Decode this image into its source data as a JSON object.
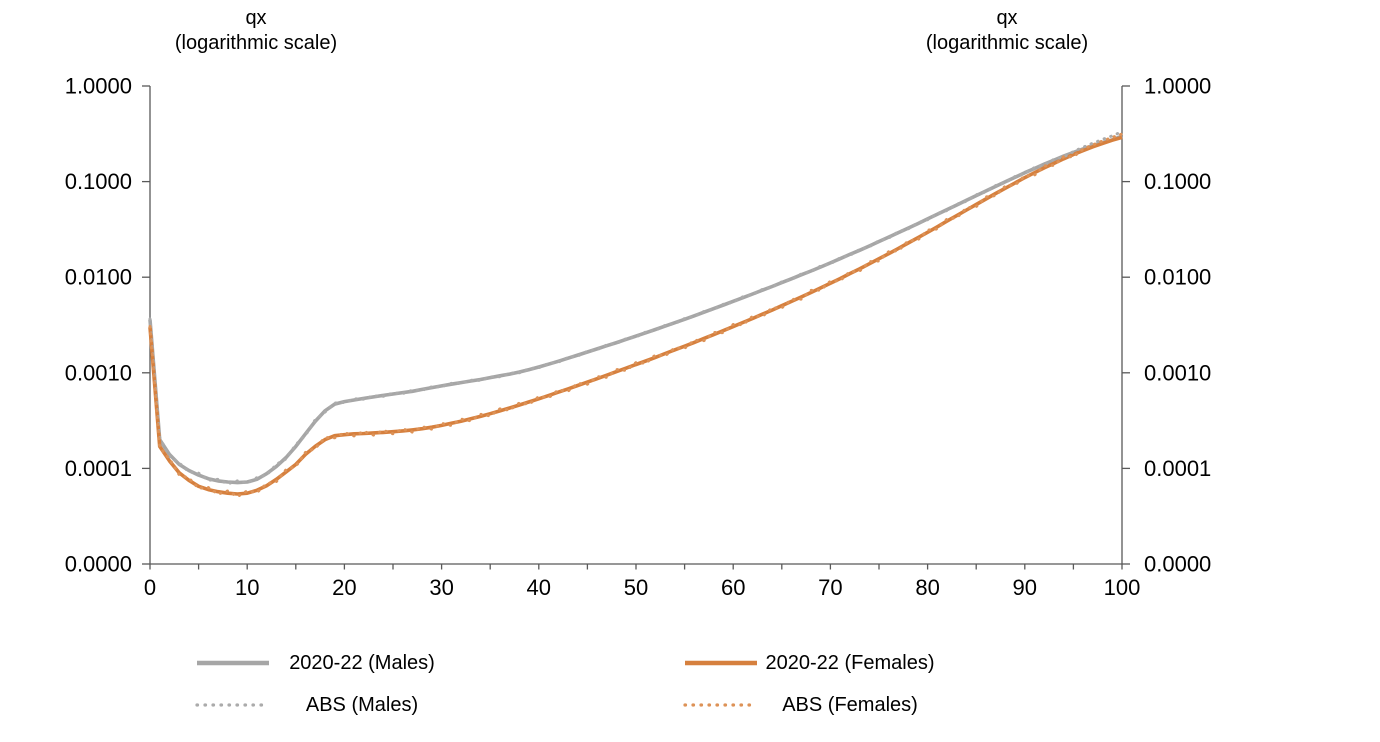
{
  "chart_data": {
    "type": "line",
    "left_axis_title": {
      "line1": "qx",
      "line2": "(logarithmic scale)"
    },
    "right_axis_title": {
      "line1": "qx",
      "line2": "(logarithmic scale)"
    },
    "x_axis": {
      "min": 0,
      "max": 100,
      "major_tick_labels": [
        "0",
        "10",
        "20",
        "30",
        "40",
        "50",
        "60",
        "70",
        "80",
        "90",
        "100"
      ],
      "major_tick_values": [
        0,
        10,
        20,
        30,
        40,
        50,
        60,
        70,
        80,
        90,
        100
      ],
      "minor_tick_step": 5
    },
    "y_axis": {
      "scale": "logarithmic",
      "min": 1e-05,
      "max": 1.0,
      "tick_labels": [
        "1.0000",
        "0.1000",
        "0.0100",
        "0.0010",
        "0.0001",
        "0.0000"
      ],
      "tick_values": [
        1,
        0.1,
        0.01,
        0.001,
        0.0001,
        1e-05
      ],
      "sides": [
        "left",
        "right"
      ],
      "grid": false
    },
    "x": [
      0,
      1,
      2,
      3,
      4,
      5,
      6,
      7,
      8,
      9,
      10,
      11,
      12,
      13,
      14,
      15,
      16,
      17,
      18,
      19,
      20,
      21,
      22,
      23,
      24,
      25,
      26,
      27,
      28,
      29,
      30,
      31,
      32,
      33,
      34,
      35,
      36,
      37,
      38,
      39,
      40,
      41,
      42,
      43,
      44,
      45,
      46,
      47,
      48,
      49,
      50,
      51,
      52,
      53,
      54,
      55,
      56,
      57,
      58,
      59,
      60,
      61,
      62,
      63,
      64,
      65,
      66,
      67,
      68,
      69,
      70,
      71,
      72,
      73,
      74,
      75,
      76,
      77,
      78,
      79,
      80,
      81,
      82,
      83,
      84,
      85,
      86,
      87,
      88,
      89,
      90,
      91,
      92,
      93,
      94,
      95,
      96,
      97,
      98,
      99,
      100
    ],
    "series": [
      {
        "name": "2020-22 (Males)",
        "line_style": "solid",
        "color": "#A6A6A6",
        "values": [
          0.0036,
          0.0002,
          0.00014,
          0.00011,
          9.5e-05,
          8.5e-05,
          7.8e-05,
          7.4e-05,
          7.2e-05,
          7.1e-05,
          7.2e-05,
          7.7e-05,
          8.8e-05,
          0.000105,
          0.00013,
          0.00017,
          0.00023,
          0.00031,
          0.0004,
          0.00047,
          0.0005,
          0.00052,
          0.00054,
          0.00056,
          0.00058,
          0.0006,
          0.00062,
          0.00064,
          0.00067,
          0.0007,
          0.00073,
          0.00076,
          0.00079,
          0.00082,
          0.00085,
          0.00089,
          0.00093,
          0.00097,
          0.00102,
          0.00108,
          0.00115,
          0.00123,
          0.00132,
          0.00142,
          0.00153,
          0.00165,
          0.00178,
          0.00192,
          0.00207,
          0.00224,
          0.00242,
          0.00262,
          0.00284,
          0.00308,
          0.00334,
          0.00363,
          0.00395,
          0.0043,
          0.00469,
          0.00512,
          0.00559,
          0.00611,
          0.00668,
          0.00731,
          0.008,
          0.00877,
          0.00962,
          0.0106,
          0.0116,
          0.0128,
          0.0141,
          0.0156,
          0.0173,
          0.0191,
          0.0212,
          0.0236,
          0.0263,
          0.0293,
          0.0326,
          0.0364,
          0.0407,
          0.0455,
          0.0509,
          0.0569,
          0.0637,
          0.0713,
          0.0797,
          0.0891,
          0.0995,
          0.111,
          0.124,
          0.137,
          0.152,
          0.168,
          0.185,
          0.202,
          0.22,
          0.238,
          0.256,
          0.274,
          0.3
        ]
      },
      {
        "name": "2020-22 (Females)",
        "line_style": "solid",
        "color": "#D6803E",
        "values": [
          0.003,
          0.00017,
          0.00012,
          9e-05,
          7.5e-05,
          6.5e-05,
          6e-05,
          5.7e-05,
          5.5e-05,
          5.4e-05,
          5.5e-05,
          5.9e-05,
          6.6e-05,
          7.7e-05,
          9.2e-05,
          0.00011,
          0.00014,
          0.00017,
          0.0002,
          0.00022,
          0.000225,
          0.00023,
          0.000232,
          0.000235,
          0.000238,
          0.000242,
          0.000247,
          0.000253,
          0.00026,
          0.00027,
          0.000282,
          0.000296,
          0.000312,
          0.00033,
          0.00035,
          0.000373,
          0.000399,
          0.000428,
          0.00046,
          0.000496,
          0.000535,
          0.000578,
          0.000626,
          0.000678,
          0.000736,
          0.000799,
          0.000868,
          0.000944,
          0.00103,
          0.00112,
          0.00122,
          0.00133,
          0.00145,
          0.00159,
          0.00174,
          0.0019,
          0.00208,
          0.00229,
          0.00251,
          0.00276,
          0.00304,
          0.00336,
          0.0037,
          0.0041,
          0.00453,
          0.00503,
          0.00558,
          0.00621,
          0.00692,
          0.00772,
          0.00864,
          0.00968,
          0.0109,
          0.0122,
          0.0138,
          0.0156,
          0.0176,
          0.02,
          0.0228,
          0.0259,
          0.0295,
          0.0337,
          0.0386,
          0.0441,
          0.0504,
          0.0576,
          0.0658,
          0.075,
          0.0853,
          0.0969,
          0.11,
          0.124,
          0.139,
          0.155,
          0.173,
          0.192,
          0.211,
          0.231,
          0.251,
          0.271,
          0.29
        ]
      },
      {
        "name": "ABS (Males)",
        "line_style": "dotted",
        "color": "#ABABAB",
        "values": [
          0.00365,
          0.00021,
          0.000133,
          0.000114,
          9.2e-05,
          8.9e-05,
          7.5e-05,
          7.7e-05,
          6.9e-05,
          7.4e-05,
          7e-05,
          8e-05,
          8.5e-05,
          0.00011,
          0.000126,
          0.000177,
          0.000222,
          0.000322,
          0.000388,
          0.000482,
          0.00049,
          0.000535,
          0.000529,
          0.000574,
          0.000568,
          0.000615,
          0.000607,
          0.000656,
          0.000657,
          0.000714,
          0.000716,
          0.000775,
          0.000774,
          0.000836,
          0.000833,
          0.000907,
          0.000911,
          0.000989,
          0.001,
          0.0011,
          0.00113,
          0.00125,
          0.00129,
          0.00145,
          0.0015,
          0.00168,
          0.00175,
          0.00196,
          0.00203,
          0.00228,
          0.00237,
          0.00267,
          0.00278,
          0.00314,
          0.00327,
          0.0037,
          0.00387,
          0.00439,
          0.0046,
          0.00522,
          0.00548,
          0.00623,
          0.00655,
          0.00746,
          0.00784,
          0.00895,
          0.00943,
          0.0108,
          0.0114,
          0.0131,
          0.0138,
          0.0159,
          0.0169,
          0.0195,
          0.0208,
          0.0241,
          0.0257,
          0.0299,
          0.032,
          0.0371,
          0.0399,
          0.0464,
          0.0498,
          0.058,
          0.0624,
          0.0727,
          0.0781,
          0.0909,
          0.0975,
          0.113,
          0.121,
          0.14,
          0.149,
          0.171,
          0.181,
          0.206,
          0.229,
          0.252,
          0.276,
          0.301,
          0.333
        ]
      },
      {
        "name": "ABS (Females)",
        "line_style": "dotted",
        "color": "#DD9257",
        "values": [
          0.00305,
          0.000165,
          0.000126,
          8.6e-05,
          7.9e-05,
          6.2e-05,
          6.3e-05,
          5.4e-05,
          5.8e-05,
          5.1e-05,
          5.8e-05,
          5.6e-05,
          6.9e-05,
          7.3e-05,
          9.7e-05,
          0.000105,
          0.000147,
          0.000162,
          0.00021,
          0.000209,
          0.000236,
          0.000219,
          0.000244,
          0.000223,
          0.00025,
          0.00023,
          0.000259,
          0.00024,
          0.000273,
          0.000257,
          0.000296,
          0.000281,
          0.000328,
          0.000314,
          0.000368,
          0.000354,
          0.000419,
          0.000407,
          0.000483,
          0.000471,
          0.000562,
          0.000549,
          0.000657,
          0.000644,
          0.000773,
          0.000759,
          0.000911,
          0.000897,
          0.00108,
          0.00106,
          0.00128,
          0.00126,
          0.00153,
          0.00151,
          0.00182,
          0.00181,
          0.00219,
          0.00217,
          0.00264,
          0.00263,
          0.0032,
          0.00319,
          0.00389,
          0.00389,
          0.00476,
          0.00478,
          0.00586,
          0.0059,
          0.00727,
          0.00734,
          0.00907,
          0.0092,
          0.0114,
          0.0116,
          0.0145,
          0.0148,
          0.0185,
          0.019,
          0.0239,
          0.0246,
          0.031,
          0.032,
          0.0405,
          0.0419,
          0.0529,
          0.0547,
          0.0691,
          0.0713,
          0.0896,
          0.092,
          0.115,
          0.117,
          0.146,
          0.148,
          0.182,
          0.182,
          0.219,
          0.242,
          0.266,
          0.29,
          0.315
        ]
      }
    ],
    "legend": {
      "position": "bottom",
      "items": [
        {
          "label": "2020-22 (Males)",
          "color": "#A6A6A6",
          "style": "solid"
        },
        {
          "label": "2020-22 (Females)",
          "color": "#D6803E",
          "style": "solid"
        },
        {
          "label": "ABS (Males)",
          "color": "#ABABAB",
          "style": "dotted"
        },
        {
          "label": "ABS (Females)",
          "color": "#DD9257",
          "style": "dotted"
        }
      ]
    },
    "colors": {
      "males_accent": "#A6A6A6",
      "females_accent": "#D6803E",
      "axis": "#595959",
      "text": "#000000",
      "background": "#FFFFFF"
    }
  }
}
